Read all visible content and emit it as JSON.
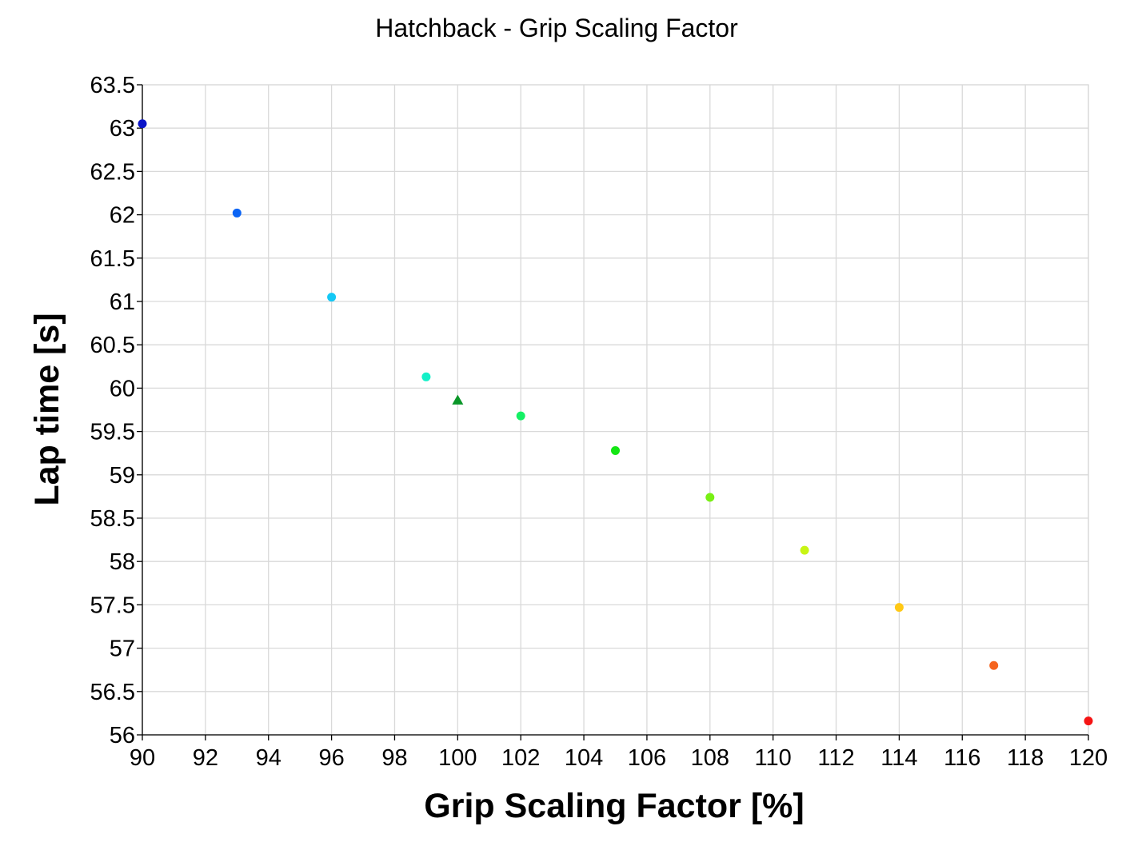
{
  "chart_data": {
    "type": "scatter",
    "title": "Hatchback - Grip Scaling Factor",
    "xlabel": "Grip Scaling Factor [%]",
    "ylabel": "Lap time [s]",
    "xlim": [
      90,
      120
    ],
    "ylim": [
      56,
      63.5
    ],
    "x_ticks": [
      90,
      92,
      94,
      96,
      98,
      100,
      102,
      104,
      106,
      108,
      110,
      112,
      114,
      116,
      118,
      120
    ],
    "y_ticks": [
      56,
      56.5,
      57,
      57.5,
      58,
      58.5,
      59,
      59.5,
      60,
      60.5,
      61,
      61.5,
      62,
      62.5,
      63,
      63.5
    ],
    "grid": true,
    "legend": "none",
    "series": [
      {
        "points": [
          {
            "x": 90,
            "y": 63.05,
            "color": "#0a14c8",
            "marker": "circle"
          },
          {
            "x": 93,
            "y": 62.02,
            "color": "#0a64f5",
            "marker": "circle"
          },
          {
            "x": 96,
            "y": 61.05,
            "color": "#14c8f5",
            "marker": "circle"
          },
          {
            "x": 99,
            "y": 60.13,
            "color": "#14f0c8",
            "marker": "circle"
          },
          {
            "x": 100,
            "y": 59.86,
            "color": "#0a9628",
            "marker": "triangle"
          },
          {
            "x": 102,
            "y": 59.68,
            "color": "#14f064",
            "marker": "circle"
          },
          {
            "x": 105,
            "y": 59.28,
            "color": "#14e614",
            "marker": "circle"
          },
          {
            "x": 108,
            "y": 58.74,
            "color": "#78f014",
            "marker": "circle"
          },
          {
            "x": 111,
            "y": 58.13,
            "color": "#c8f514",
            "marker": "circle"
          },
          {
            "x": 114,
            "y": 57.47,
            "color": "#ffc814",
            "marker": "circle"
          },
          {
            "x": 117,
            "y": 56.8,
            "color": "#f5641e",
            "marker": "circle"
          },
          {
            "x": 120,
            "y": 56.16,
            "color": "#f51414",
            "marker": "circle"
          }
        ]
      }
    ]
  }
}
